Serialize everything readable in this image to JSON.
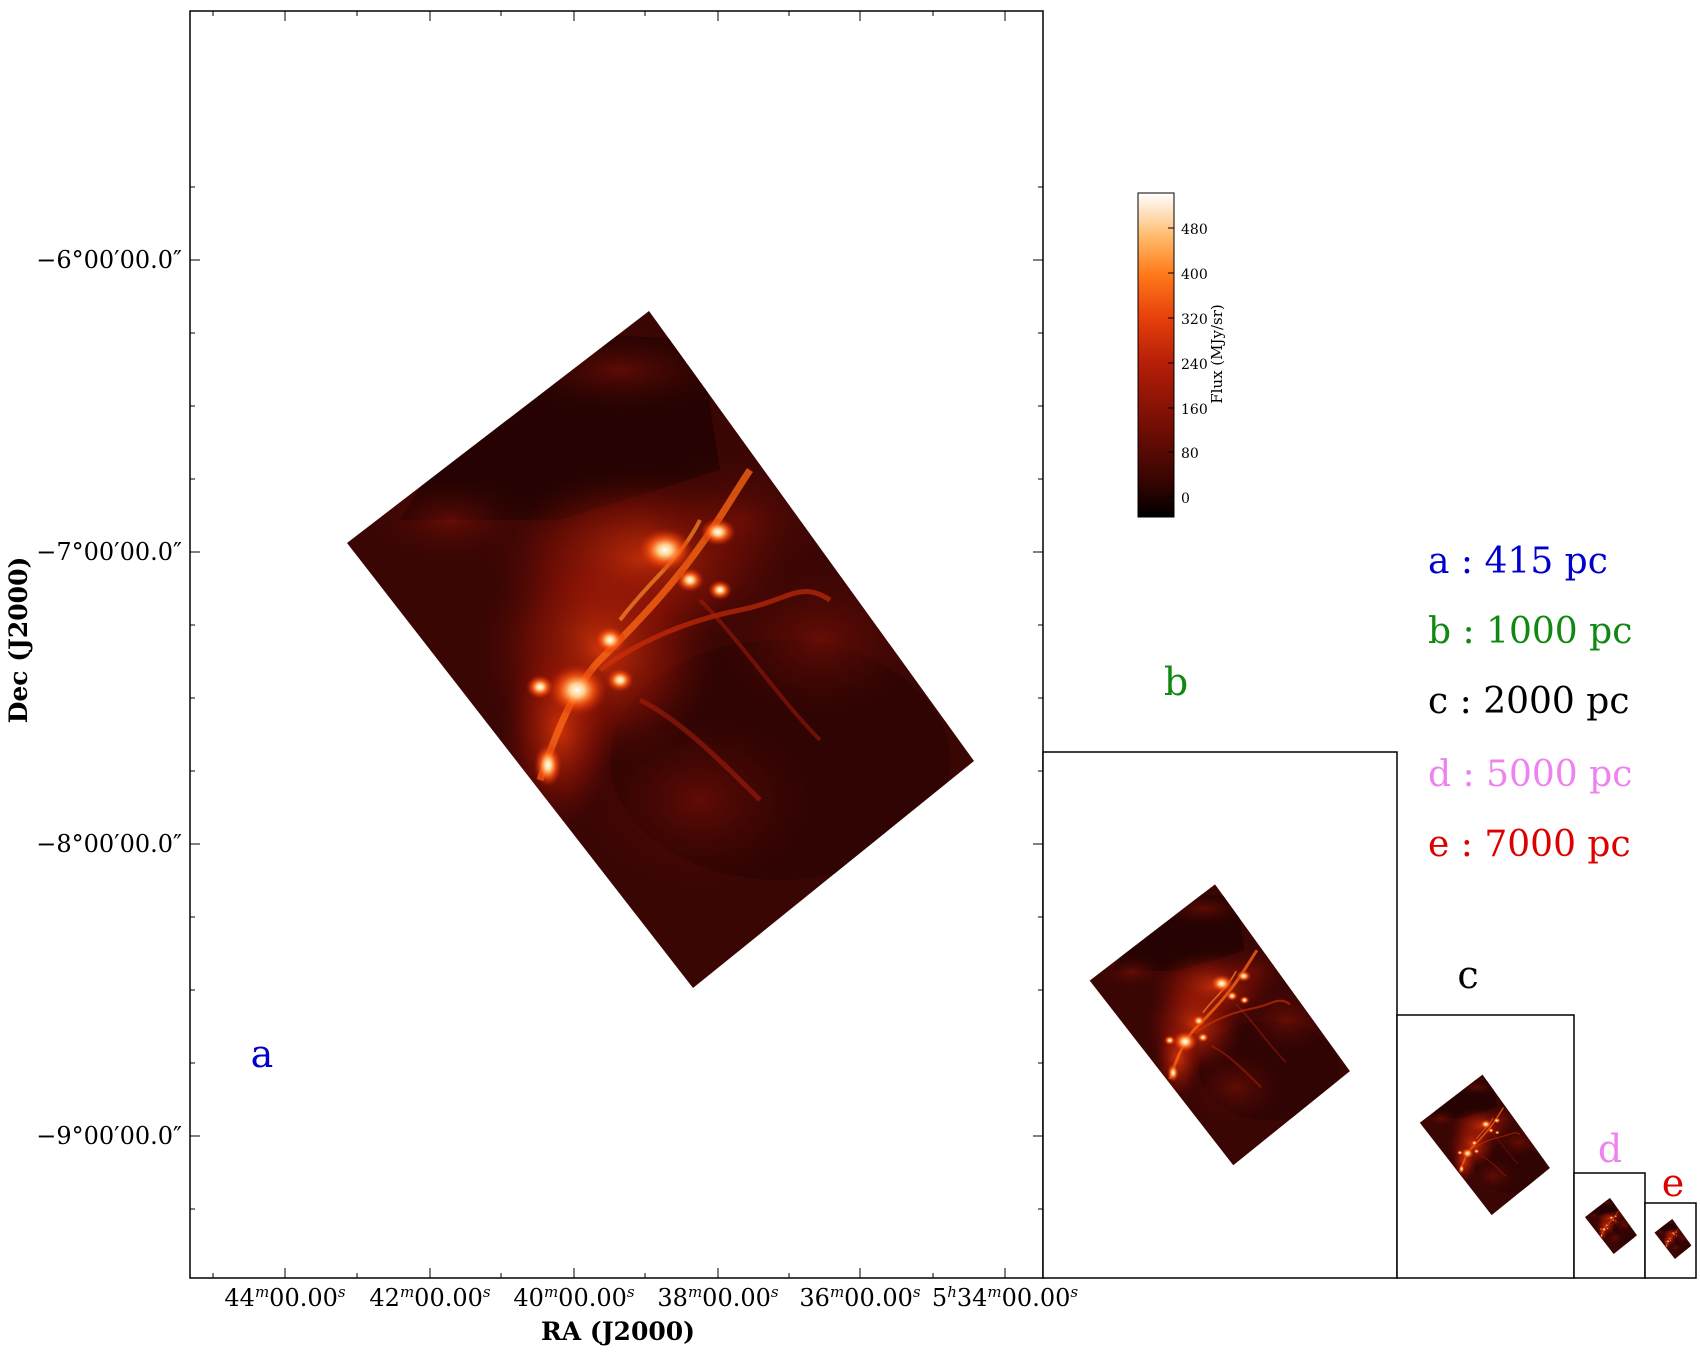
{
  "main_plot": {
    "xlabel": "RA (J2000)",
    "ylabel": "Dec (J2000)",
    "x_ticks": [
      {
        "h": "",
        "m": "44",
        "s": "00.00"
      },
      {
        "h": "",
        "m": "42",
        "s": "00.00"
      },
      {
        "h": "",
        "m": "40",
        "s": "00.00"
      },
      {
        "h": "",
        "m": "38",
        "s": "00.00"
      },
      {
        "h": "",
        "m": "36",
        "s": "00.00"
      },
      {
        "h": "5",
        "m": "34",
        "s": "00.00"
      }
    ],
    "y_ticks": [
      "−6°00′00.0″",
      "−7°00′00.0″",
      "−8°00′00.0″",
      "−9°00′00.0″"
    ]
  },
  "colorbar": {
    "label": "Flux (MJy/sr)",
    "ticks": [
      "480",
      "400",
      "320",
      "240",
      "160",
      "80",
      "0"
    ],
    "colors": [
      "#000000",
      "#3a0502",
      "#7a0f05",
      "#b81f08",
      "#e8420c",
      "#ff7a1a",
      "#ffb766",
      "#ffe6c9",
      "#ffffff"
    ]
  },
  "panels": [
    {
      "label": "a",
      "distance": "415 pc",
      "color": "#0000cc"
    },
    {
      "label": "b",
      "distance": "1000 pc",
      "color": "#118811"
    },
    {
      "label": "c",
      "distance": "2000 pc",
      "color": "#000000"
    },
    {
      "label": "d",
      "distance": "5000 pc",
      "color": "#ee82ee"
    },
    {
      "label": "e",
      "distance": "7000 pc",
      "color": "#dd0000"
    }
  ],
  "legend_separator": ":"
}
